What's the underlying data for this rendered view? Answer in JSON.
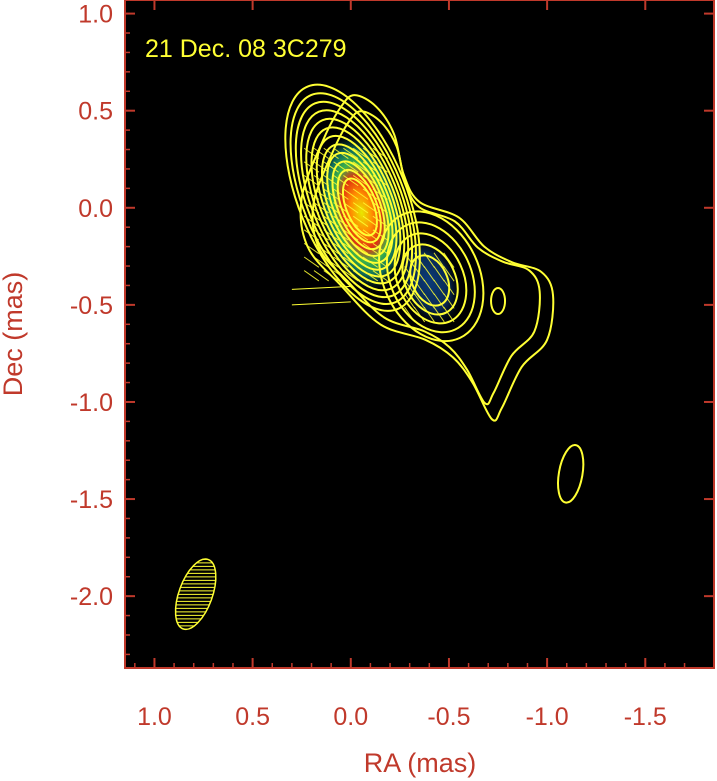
{
  "chart_data": {
    "type": "contour",
    "title": "21 Dec. 08  3C279",
    "xlabel": "RA (mas)",
    "ylabel": "Dec (mas)",
    "xlim": [
      1.15,
      -1.85
    ],
    "ylim": [
      -2.37,
      1.07
    ],
    "x_ticks": [
      {
        "value": 1.0,
        "label": "1.0"
      },
      {
        "value": 0.5,
        "label": "0.5"
      },
      {
        "value": 0.0,
        "label": "0.0"
      },
      {
        "value": -0.5,
        "label": "-0.5"
      },
      {
        "value": -1.0,
        "label": "-1.0"
      },
      {
        "value": -1.5,
        "label": "-1.5"
      }
    ],
    "y_ticks": [
      {
        "value": 1.0,
        "label": "1.0"
      },
      {
        "value": 0.5,
        "label": "0.5"
      },
      {
        "value": 0.0,
        "label": "0.0"
      },
      {
        "value": -0.5,
        "label": "-0.5"
      },
      {
        "value": -1.0,
        "label": "-1.0"
      },
      {
        "value": -1.5,
        "label": "-1.5"
      },
      {
        "value": -2.0,
        "label": "-2.0"
      }
    ],
    "grid": false,
    "colors": {
      "background": "#000000",
      "frame": "#c0392b",
      "contour": "#ffff33",
      "text": "#c0392b",
      "title": "#ffff33"
    },
    "core_component": {
      "ra": -0.05,
      "dec": 0.0,
      "levels": 12
    },
    "jet_component": {
      "ra": -0.4,
      "dec": -0.38,
      "levels": 5
    },
    "outer_jet_extent": {
      "ra_max": -1.0,
      "dec_min": -1.1
    },
    "isolated_feature": {
      "ra": -1.12,
      "dec": -1.37,
      "a": 0.06,
      "b": 0.15
    },
    "restoring_beam": {
      "ra": 0.79,
      "dec": -1.99,
      "major": 0.19,
      "minor": 0.085,
      "pa_deg": 20
    },
    "polarization_vectors": true
  }
}
